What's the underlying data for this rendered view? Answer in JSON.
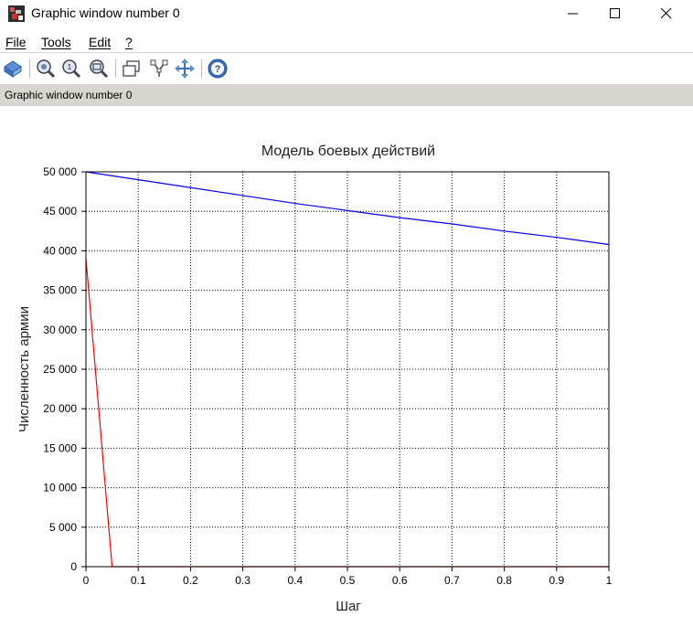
{
  "window": {
    "title": "Graphic window number 0",
    "status": "Graphic window number 0"
  },
  "menu": {
    "items": [
      {
        "label": "File",
        "name": "menu-file"
      },
      {
        "label": "Tools",
        "name": "menu-tools"
      },
      {
        "label": "Edit",
        "name": "menu-edit"
      },
      {
        "label": "?",
        "name": "menu-help"
      }
    ]
  },
  "toolbar": {
    "icons": [
      "rotate-icon",
      "zoom-in-icon",
      "zoom-fit-icon",
      "zoom-region-icon",
      "new-window-icon",
      "datatip-icon",
      "pan-icon",
      "help-icon"
    ]
  },
  "colors": {
    "series_blue": "#0000ff",
    "series_red": "#ff0000"
  },
  "chart_data": {
    "type": "line",
    "title": "Модель боевых действий",
    "xlabel": "Шаг",
    "ylabel": "Численность армии",
    "xlim": [
      0,
      1
    ],
    "ylim": [
      0,
      50000
    ],
    "grid": true,
    "x_ticks": [
      "0",
      "0.1",
      "0.2",
      "0.3",
      "0.4",
      "0.5",
      "0.6",
      "0.7",
      "0.8",
      "0.9",
      "1"
    ],
    "y_ticks": [
      "0",
      "5 000",
      "10 000",
      "15 000",
      "20 000",
      "25 000",
      "30 000",
      "35 000",
      "40 000",
      "45 000",
      "50 000"
    ],
    "series": [
      {
        "color": "#0000ff",
        "x": [
          0,
          0.1,
          0.2,
          0.3,
          0.4,
          0.5,
          0.6,
          0.7,
          0.8,
          0.9,
          1.0
        ],
        "y": [
          50000,
          49000,
          48000,
          47000,
          46000,
          45100,
          44200,
          43400,
          42500,
          41700,
          40800
        ]
      },
      {
        "color": "#ff0000",
        "x": [
          0,
          0.002,
          0.05,
          0.052,
          1.0
        ],
        "y": [
          39000,
          37500,
          0,
          0,
          0
        ]
      }
    ]
  }
}
